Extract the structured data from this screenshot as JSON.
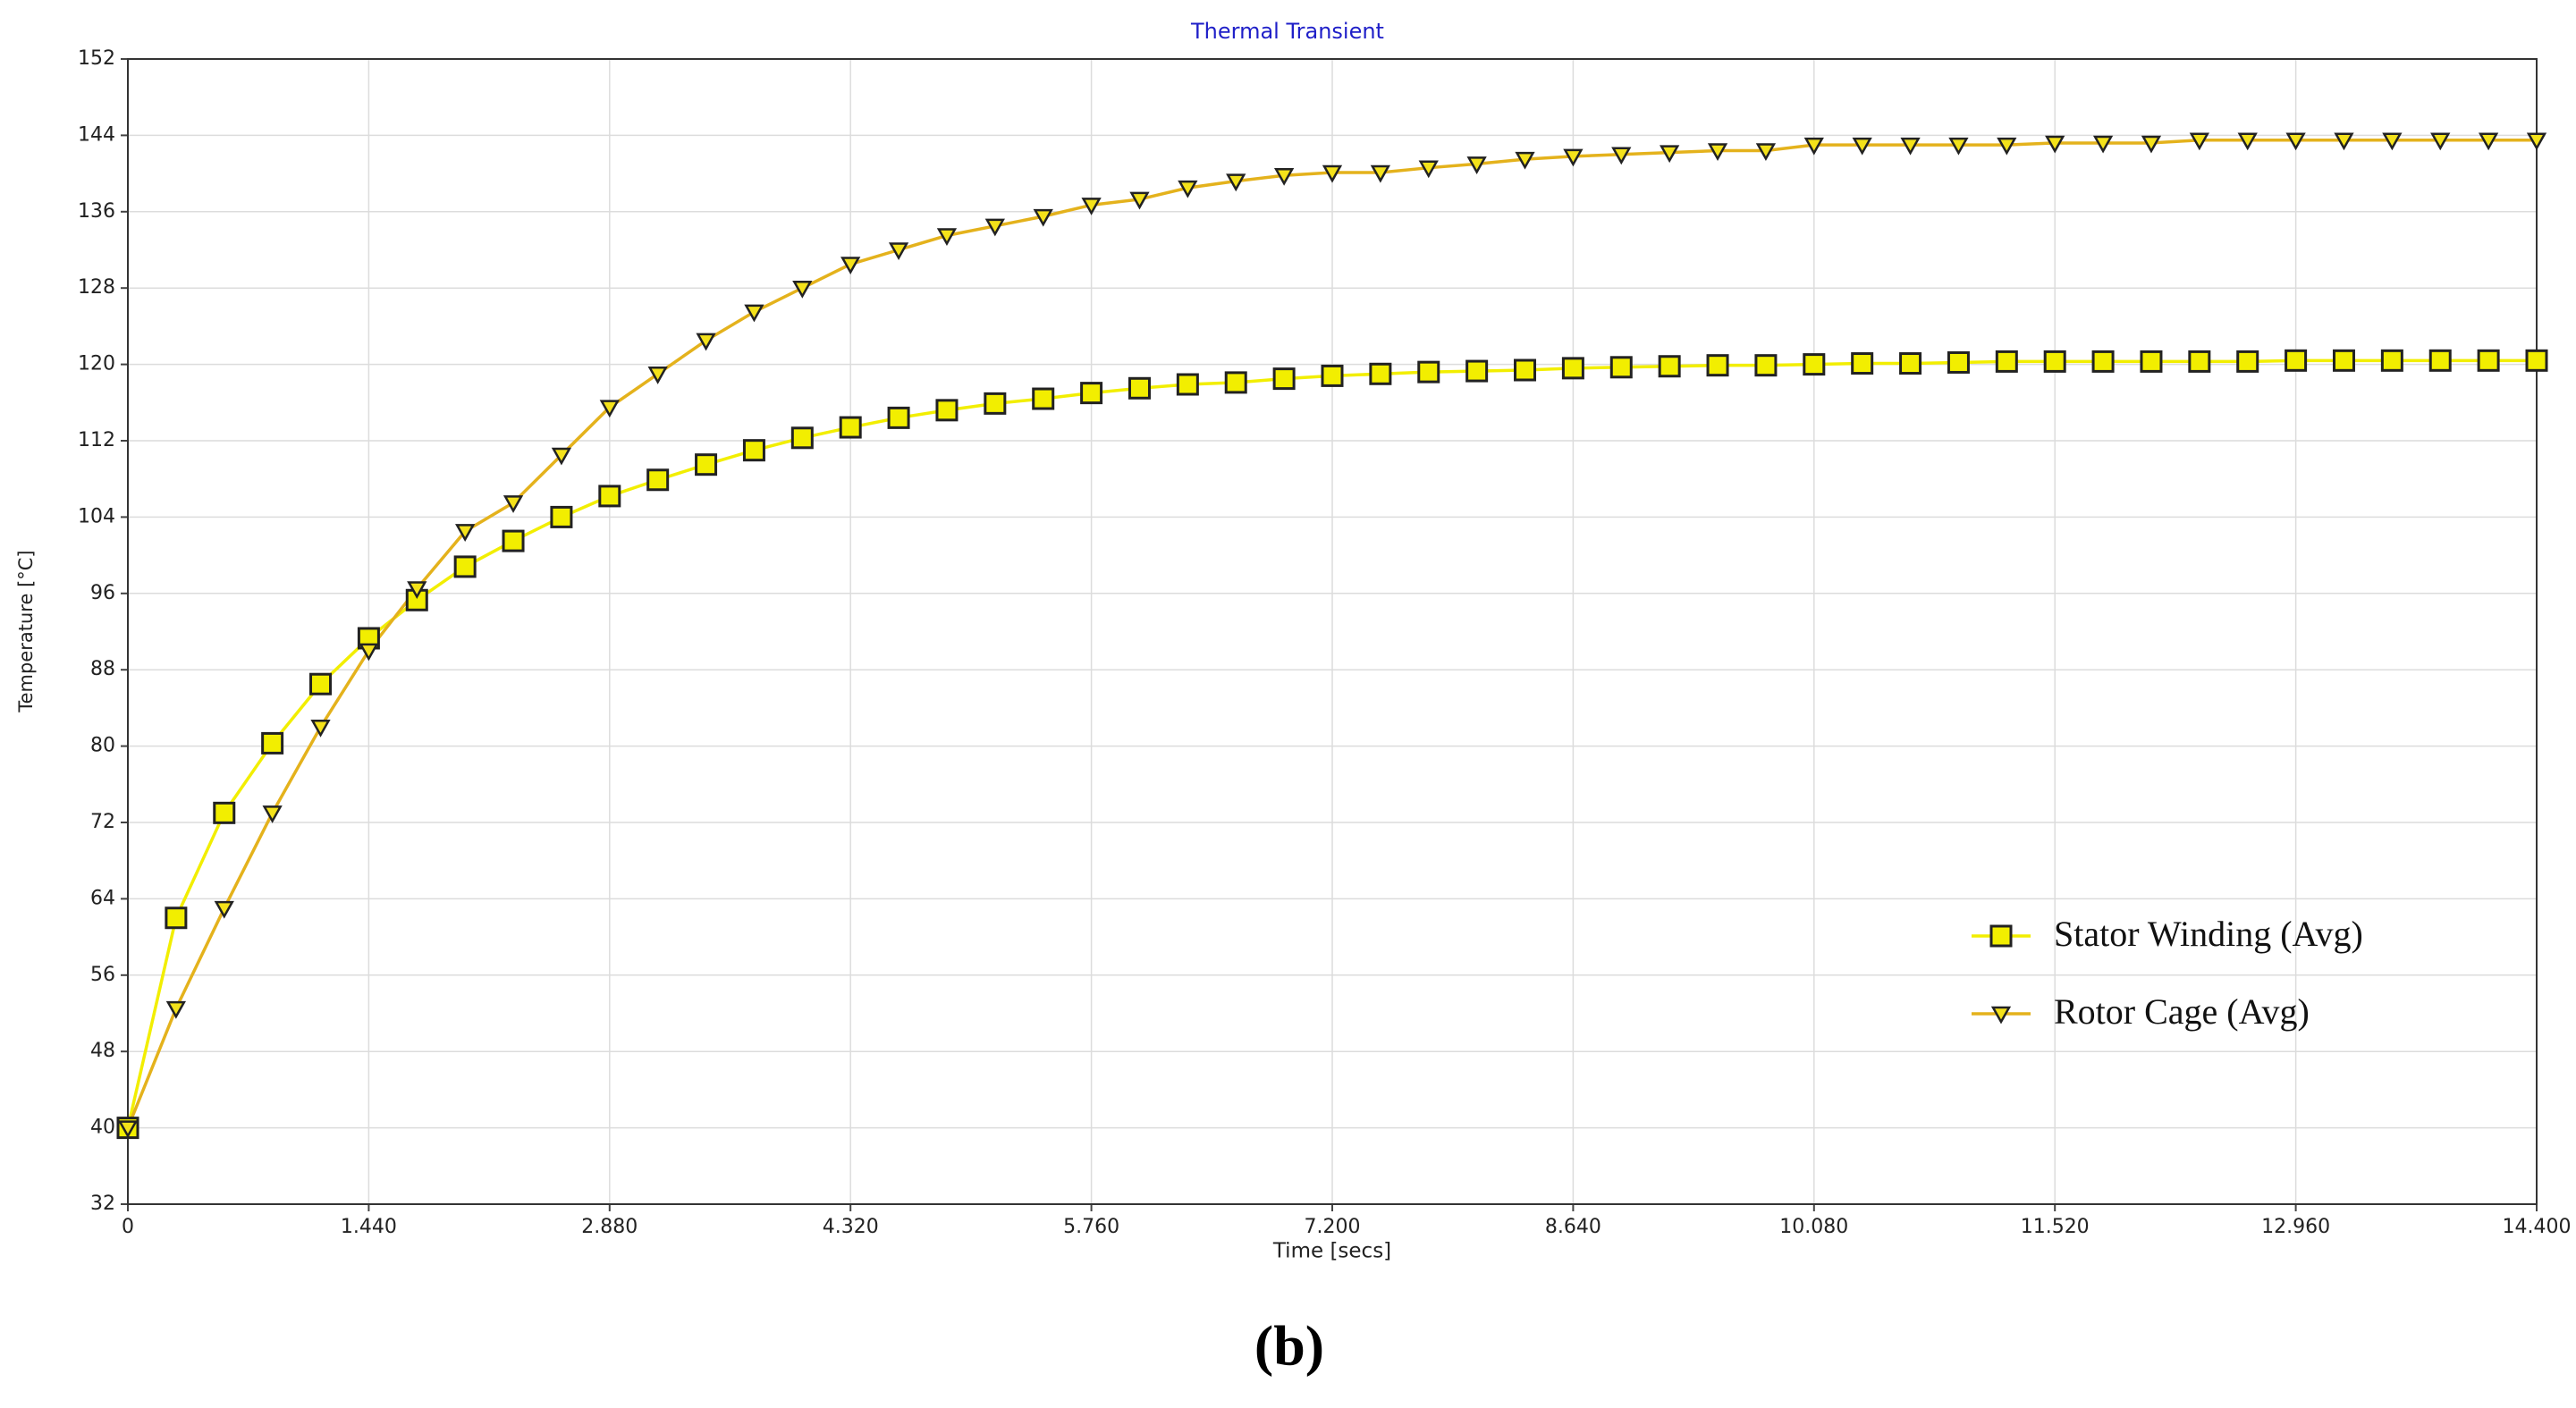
{
  "chart_data": {
    "type": "line",
    "title": "Thermal Transient",
    "caption": "(b)",
    "x_label": "Time [secs]",
    "y_label": "Temperature [°C]",
    "x": [
      0,
      0.288,
      0.576,
      0.864,
      1.152,
      1.44,
      1.728,
      2.016,
      2.304,
      2.592,
      2.88,
      3.168,
      3.456,
      3.744,
      4.032,
      4.32,
      4.608,
      4.896,
      5.184,
      5.472,
      5.76,
      6.048,
      6.336,
      6.624,
      6.912,
      7.2,
      7.488,
      7.776,
      8.064,
      8.352,
      8.64,
      8.928,
      9.216,
      9.504,
      9.792,
      10.08,
      10.368,
      10.656,
      10.944,
      11.232,
      11.52,
      11.808,
      12.096,
      12.384,
      12.672,
      12.96,
      13.248,
      13.536,
      13.824,
      14.112,
      14.4
    ],
    "series": [
      {
        "name": "Stator Winding (Avg)",
        "color": "#f2ee00",
        "marker": "square",
        "values": [
          40,
          62,
          73,
          80.3,
          86.5,
          91.3,
          95.3,
          98.8,
          101.5,
          104,
          106.2,
          107.9,
          109.5,
          111,
          112.3,
          113.4,
          114.4,
          115.2,
          115.9,
          116.4,
          117,
          117.5,
          117.9,
          118.1,
          118.5,
          118.8,
          119,
          119.2,
          119.3,
          119.4,
          119.6,
          119.7,
          119.8,
          119.9,
          119.9,
          120,
          120.1,
          120.1,
          120.2,
          120.3,
          120.3,
          120.3,
          120.3,
          120.3,
          120.3,
          120.4,
          120.4,
          120.4,
          120.4,
          120.4,
          120.4
        ]
      },
      {
        "name": "Rotor Cage (Avg)",
        "color": "#e4b21c",
        "marker": "triangle-down",
        "values": [
          40,
          52.5,
          63,
          73,
          82,
          90,
          96.5,
          102.5,
          105.5,
          110.5,
          115.5,
          119,
          122.5,
          125.5,
          128,
          130.5,
          132,
          133.5,
          134.5,
          135.5,
          136.7,
          137.3,
          138.5,
          139.2,
          139.8,
          140.1,
          140.1,
          140.6,
          141,
          141.5,
          141.8,
          142,
          142.2,
          142.4,
          142.4,
          143,
          143,
          143,
          143,
          143,
          143.2,
          143.2,
          143.2,
          143.5,
          143.5,
          143.5,
          143.5,
          143.5,
          143.5,
          143.5,
          143.5
        ]
      }
    ],
    "xlim": [
      0,
      14.4
    ],
    "xticks": [
      0,
      {
        "value": 1.44,
        "label": "1.440"
      },
      {
        "value": 2.88,
        "label": "2.880"
      },
      {
        "value": 4.32,
        "label": "4.320"
      },
      {
        "value": 5.76,
        "label": "5.760"
      },
      {
        "value": 7.2,
        "label": "7.200"
      },
      {
        "value": 8.64,
        "label": "8.640"
      },
      {
        "value": 10.08,
        "label": "10.080"
      },
      {
        "value": 11.52,
        "label": "11.520"
      },
      {
        "value": 12.96,
        "label": "12.960"
      },
      {
        "value": 14.4,
        "label": "14.400"
      }
    ],
    "ylim": [
      32,
      152
    ],
    "yticks": [
      32,
      40,
      48,
      56,
      64,
      72,
      80,
      88,
      96,
      104,
      112,
      120,
      128,
      136,
      144,
      152
    ],
    "grid": true,
    "legend": "lower right"
  }
}
